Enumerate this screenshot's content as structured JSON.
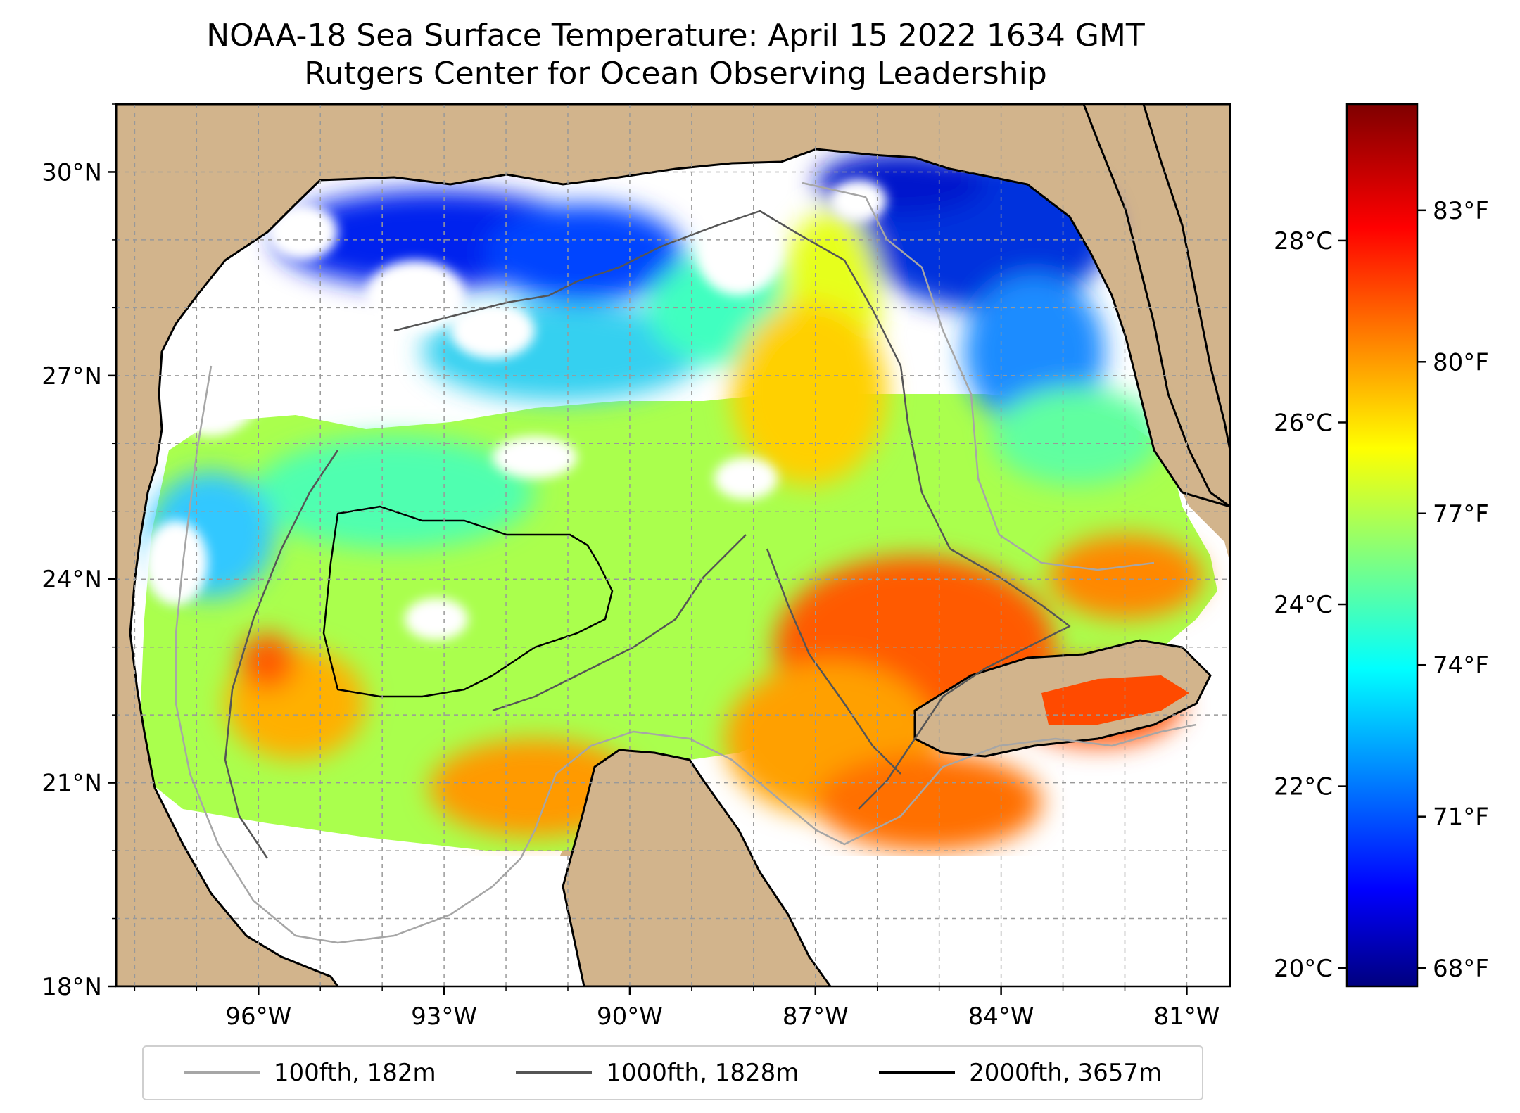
{
  "title": {
    "line1": "NOAA-18 Sea Surface Temperature: April 15 2022 1634 GMT",
    "line2": "Rutgers Center for Ocean Observing Leadership"
  },
  "map": {
    "lon_range": [
      -98.3,
      -80.3
    ],
    "lat_range": [
      18,
      31
    ],
    "lat_ticks": [
      {
        "value": 18,
        "label": "18°N"
      },
      {
        "value": 21,
        "label": "21°N"
      },
      {
        "value": 24,
        "label": "24°N"
      },
      {
        "value": 27,
        "label": "27°N"
      },
      {
        "value": 30,
        "label": "30°N"
      }
    ],
    "lon_ticks": [
      {
        "value": -96,
        "label": "96°W"
      },
      {
        "value": -93,
        "label": "93°W"
      },
      {
        "value": -90,
        "label": "90°W"
      },
      {
        "value": -87,
        "label": "87°W"
      },
      {
        "value": -84,
        "label": "84°W"
      },
      {
        "value": -81,
        "label": "81°W"
      }
    ],
    "land_color": "#d2b48c",
    "gridlines": true
  },
  "colorbar": {
    "colormap": "jet",
    "celsius_range": [
      19.8,
      29.5
    ],
    "celsius_ticks": [
      {
        "value": 20,
        "label": "20°C"
      },
      {
        "value": 22,
        "label": "22°C"
      },
      {
        "value": 24,
        "label": "24°C"
      },
      {
        "value": 26,
        "label": "26°C"
      },
      {
        "value": 28,
        "label": "28°C"
      }
    ],
    "fahrenheit_ticks": [
      {
        "value": 68,
        "label": "68°F"
      },
      {
        "value": 71,
        "label": "71°F"
      },
      {
        "value": 74,
        "label": "74°F"
      },
      {
        "value": 77,
        "label": "77°F"
      },
      {
        "value": 80,
        "label": "80°F"
      },
      {
        "value": 83,
        "label": "83°F"
      }
    ]
  },
  "legend": {
    "items": [
      {
        "label": "100fth, 182m",
        "color": "#a6a6a6"
      },
      {
        "label": "1000fth, 1828m",
        "color": "#555555"
      },
      {
        "label": "2000fth, 3657m",
        "color": "#000000"
      }
    ]
  }
}
